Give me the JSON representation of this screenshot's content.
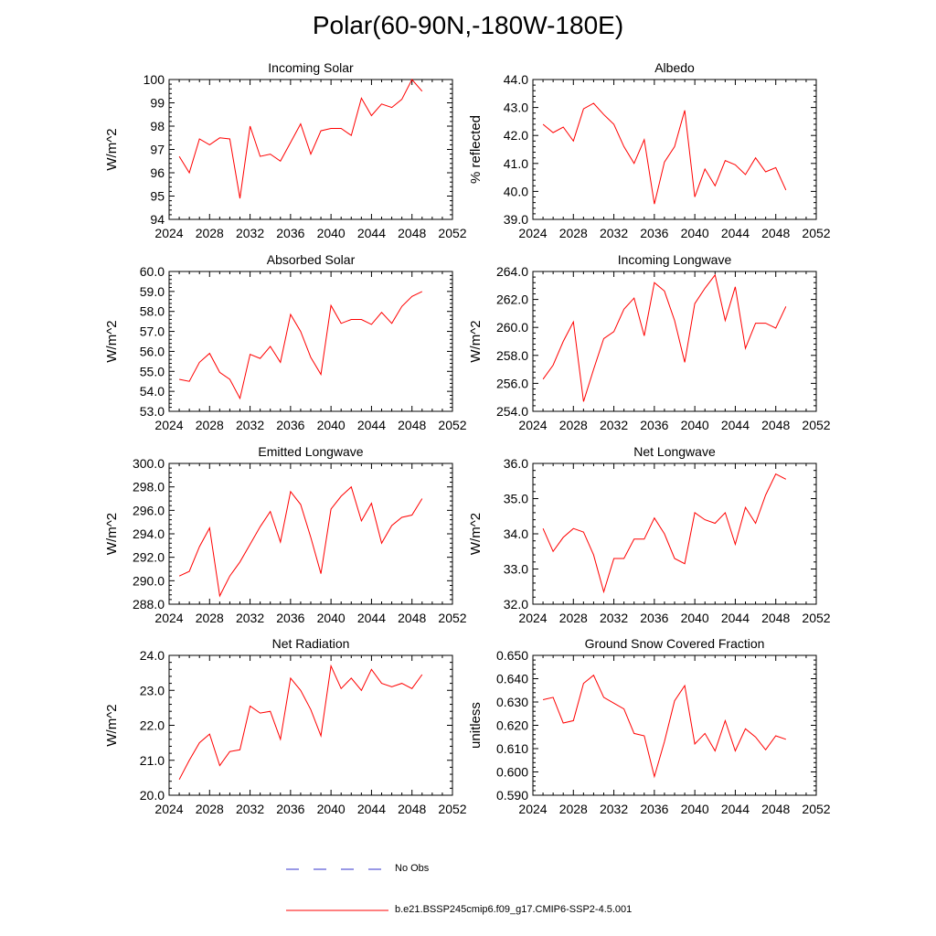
{
  "page": {
    "title": "Polar(60-90N,-180W-180E)"
  },
  "legend": {
    "items": [
      {
        "label": "No Obs",
        "color": "#3333cc",
        "dash": "dashed"
      },
      {
        "label": "b.e21.BSSP245cmip6.f09_g17.CMIP6-SSP2-4.5.001",
        "color": "#ff0000",
        "dash": "solid"
      }
    ]
  },
  "chart_data": [
    {
      "type": "line",
      "title": "Incoming Solar",
      "xlabel": "",
      "ylabel": "W/m^2",
      "xlim": [
        2024,
        2052
      ],
      "ylim": [
        94,
        100
      ],
      "xticks": [
        2024,
        2028,
        2032,
        2036,
        2040,
        2044,
        2048,
        2052
      ],
      "yticks": [
        94,
        95,
        96,
        97,
        98,
        99,
        100
      ],
      "ytick_decimals": 0,
      "series": [
        {
          "name": "b.e21.BSSP245cmip6.f09_g17.CMIP6-SSP2-4.5.001",
          "color": "#ff0000",
          "x": [
            2025,
            2026,
            2027,
            2028,
            2029,
            2030,
            2031,
            2032,
            2033,
            2034,
            2035,
            2036,
            2037,
            2038,
            2039,
            2040,
            2041,
            2042,
            2043,
            2044,
            2045,
            2046,
            2047,
            2048,
            2049
          ],
          "values": [
            96.7,
            96.0,
            97.45,
            97.2,
            97.5,
            97.45,
            94.9,
            98.0,
            96.7,
            96.8,
            96.5,
            97.3,
            98.1,
            96.8,
            97.8,
            97.9,
            97.9,
            97.6,
            99.2,
            98.45,
            98.95,
            98.8,
            99.15,
            100.0,
            99.5
          ]
        }
      ]
    },
    {
      "type": "line",
      "title": "Albedo",
      "xlabel": "",
      "ylabel": "% reflected",
      "xlim": [
        2024,
        2052
      ],
      "ylim": [
        39.0,
        44.0
      ],
      "xticks": [
        2024,
        2028,
        2032,
        2036,
        2040,
        2044,
        2048,
        2052
      ],
      "yticks": [
        39.0,
        40.0,
        41.0,
        42.0,
        43.0,
        44.0
      ],
      "ytick_decimals": 1,
      "series": [
        {
          "name": "b.e21.BSSP245cmip6.f09_g17.CMIP6-SSP2-4.5.001",
          "color": "#ff0000",
          "x": [
            2025,
            2026,
            2027,
            2028,
            2029,
            2030,
            2031,
            2032,
            2033,
            2034,
            2035,
            2036,
            2037,
            2038,
            2039,
            2040,
            2041,
            2042,
            2043,
            2044,
            2045,
            2046,
            2047,
            2048,
            2049
          ],
          "values": [
            42.4,
            42.1,
            42.3,
            41.8,
            42.95,
            43.15,
            42.75,
            42.4,
            41.6,
            41.0,
            41.85,
            39.55,
            41.05,
            41.6,
            42.9,
            39.8,
            40.8,
            40.2,
            41.1,
            40.95,
            40.6,
            41.2,
            40.7,
            40.85,
            40.05
          ]
        }
      ]
    },
    {
      "type": "line",
      "title": "Absorbed Solar",
      "xlabel": "",
      "ylabel": "W/m^2",
      "xlim": [
        2024,
        2052
      ],
      "ylim": [
        53.0,
        60.0
      ],
      "xticks": [
        2024,
        2028,
        2032,
        2036,
        2040,
        2044,
        2048,
        2052
      ],
      "yticks": [
        53.0,
        54.0,
        55.0,
        56.0,
        57.0,
        58.0,
        59.0,
        60.0
      ],
      "ytick_decimals": 1,
      "series": [
        {
          "name": "b.e21.BSSP245cmip6.f09_g17.CMIP6-SSP2-4.5.001",
          "color": "#ff0000",
          "x": [
            2025,
            2026,
            2027,
            2028,
            2029,
            2030,
            2031,
            2032,
            2033,
            2034,
            2035,
            2036,
            2037,
            2038,
            2039,
            2040,
            2041,
            2042,
            2043,
            2044,
            2045,
            2046,
            2047,
            2048,
            2049
          ],
          "values": [
            54.6,
            54.5,
            55.45,
            55.9,
            54.95,
            54.6,
            53.65,
            55.85,
            55.65,
            56.25,
            55.45,
            57.85,
            57.0,
            55.7,
            54.85,
            58.3,
            57.4,
            57.6,
            57.6,
            57.35,
            57.95,
            57.4,
            58.25,
            58.75,
            59.0
          ]
        }
      ]
    },
    {
      "type": "line",
      "title": "Incoming Longwave",
      "xlabel": "",
      "ylabel": "W/m^2",
      "xlim": [
        2024,
        2052
      ],
      "ylim": [
        254.0,
        264.0
      ],
      "xticks": [
        2024,
        2028,
        2032,
        2036,
        2040,
        2044,
        2048,
        2052
      ],
      "yticks": [
        254.0,
        256.0,
        258.0,
        260.0,
        262.0,
        264.0
      ],
      "ytick_decimals": 1,
      "series": [
        {
          "name": "b.e21.BSSP245cmip6.f09_g17.CMIP6-SSP2-4.5.001",
          "color": "#ff0000",
          "x": [
            2025,
            2026,
            2027,
            2028,
            2029,
            2030,
            2031,
            2032,
            2033,
            2034,
            2035,
            2036,
            2037,
            2038,
            2039,
            2040,
            2041,
            2042,
            2043,
            2044,
            2045,
            2046,
            2047,
            2048,
            2049
          ],
          "values": [
            256.3,
            257.3,
            259.0,
            260.4,
            254.7,
            257.0,
            259.2,
            259.7,
            261.3,
            262.1,
            259.4,
            263.2,
            262.6,
            260.5,
            257.5,
            261.7,
            262.8,
            263.75,
            260.5,
            262.9,
            258.5,
            260.3,
            260.3,
            259.95,
            261.5
          ]
        }
      ]
    },
    {
      "type": "line",
      "title": "Emitted Longwave",
      "xlabel": "",
      "ylabel": "W/m^2",
      "xlim": [
        2024,
        2052
      ],
      "ylim": [
        288.0,
        300.0
      ],
      "xticks": [
        2024,
        2028,
        2032,
        2036,
        2040,
        2044,
        2048,
        2052
      ],
      "yticks": [
        288.0,
        290.0,
        292.0,
        294.0,
        296.0,
        298.0,
        300.0
      ],
      "ytick_decimals": 1,
      "series": [
        {
          "name": "b.e21.BSSP245cmip6.f09_g17.CMIP6-SSP2-4.5.001",
          "color": "#ff0000",
          "x": [
            2025,
            2026,
            2027,
            2028,
            2029,
            2030,
            2031,
            2032,
            2033,
            2034,
            2035,
            2036,
            2037,
            2038,
            2039,
            2040,
            2041,
            2042,
            2043,
            2044,
            2045,
            2046,
            2047,
            2048,
            2049
          ],
          "values": [
            290.4,
            290.8,
            292.9,
            294.5,
            288.7,
            290.4,
            291.6,
            293.1,
            294.6,
            295.9,
            293.3,
            297.6,
            296.5,
            293.7,
            290.6,
            296.1,
            297.2,
            298.0,
            295.1,
            296.6,
            293.2,
            294.7,
            295.4,
            295.6,
            297.0
          ]
        }
      ]
    },
    {
      "type": "line",
      "title": "Net Longwave",
      "xlabel": "",
      "ylabel": "W/m^2",
      "xlim": [
        2024,
        2052
      ],
      "ylim": [
        32.0,
        36.0
      ],
      "xticks": [
        2024,
        2028,
        2032,
        2036,
        2040,
        2044,
        2048,
        2052
      ],
      "yticks": [
        32.0,
        33.0,
        34.0,
        35.0,
        36.0
      ],
      "ytick_decimals": 1,
      "series": [
        {
          "name": "b.e21.BSSP245cmip6.f09_g17.CMIP6-SSP2-4.5.001",
          "color": "#ff0000",
          "x": [
            2025,
            2026,
            2027,
            2028,
            2029,
            2030,
            2031,
            2032,
            2033,
            2034,
            2035,
            2036,
            2037,
            2038,
            2039,
            2040,
            2041,
            2042,
            2043,
            2044,
            2045,
            2046,
            2047,
            2048,
            2049
          ],
          "values": [
            34.15,
            33.5,
            33.9,
            34.15,
            34.05,
            33.4,
            32.35,
            33.3,
            33.3,
            33.85,
            33.85,
            34.45,
            34.0,
            33.3,
            33.15,
            34.6,
            34.4,
            34.3,
            34.6,
            33.7,
            34.75,
            34.3,
            35.1,
            35.7,
            35.55
          ]
        }
      ]
    },
    {
      "type": "line",
      "title": "Net Radiation",
      "xlabel": "",
      "ylabel": "W/m^2",
      "xlim": [
        2024,
        2052
      ],
      "ylim": [
        20.0,
        24.0
      ],
      "xticks": [
        2024,
        2028,
        2032,
        2036,
        2040,
        2044,
        2048,
        2052
      ],
      "yticks": [
        20.0,
        21.0,
        22.0,
        23.0,
        24.0
      ],
      "ytick_decimals": 1,
      "series": [
        {
          "name": "b.e21.BSSP245cmip6.f09_g17.CMIP6-SSP2-4.5.001",
          "color": "#ff0000",
          "x": [
            2025,
            2026,
            2027,
            2028,
            2029,
            2030,
            2031,
            2032,
            2033,
            2034,
            2035,
            2036,
            2037,
            2038,
            2039,
            2040,
            2041,
            2042,
            2043,
            2044,
            2045,
            2046,
            2047,
            2048,
            2049
          ],
          "values": [
            20.45,
            21.0,
            21.5,
            21.75,
            20.85,
            21.25,
            21.3,
            22.55,
            22.35,
            22.4,
            21.6,
            23.35,
            23.0,
            22.45,
            21.7,
            23.7,
            23.05,
            23.35,
            23.0,
            23.6,
            23.2,
            23.1,
            23.2,
            23.05,
            23.45
          ]
        }
      ]
    },
    {
      "type": "line",
      "title": "Ground Snow Covered Fraction",
      "xlabel": "",
      "ylabel": "unitless",
      "xlim": [
        2024,
        2052
      ],
      "ylim": [
        0.59,
        0.65
      ],
      "xticks": [
        2024,
        2028,
        2032,
        2036,
        2040,
        2044,
        2048,
        2052
      ],
      "yticks": [
        0.59,
        0.6,
        0.61,
        0.62,
        0.63,
        0.64,
        0.65
      ],
      "ytick_decimals": 3,
      "series": [
        {
          "name": "b.e21.BSSP245cmip6.f09_g17.CMIP6-SSP2-4.5.001",
          "color": "#ff0000",
          "x": [
            2025,
            2026,
            2027,
            2028,
            2029,
            2030,
            2031,
            2032,
            2033,
            2034,
            2035,
            2036,
            2037,
            2038,
            2039,
            2040,
            2041,
            2042,
            2043,
            2044,
            2045,
            2046,
            2047,
            2048,
            2049
          ],
          "values": [
            0.631,
            0.632,
            0.621,
            0.622,
            0.638,
            0.6415,
            0.632,
            0.6295,
            0.627,
            0.6165,
            0.6155,
            0.598,
            0.613,
            0.6305,
            0.637,
            0.612,
            0.6165,
            0.609,
            0.622,
            0.609,
            0.6185,
            0.615,
            0.6095,
            0.6155,
            0.614
          ]
        }
      ]
    }
  ]
}
